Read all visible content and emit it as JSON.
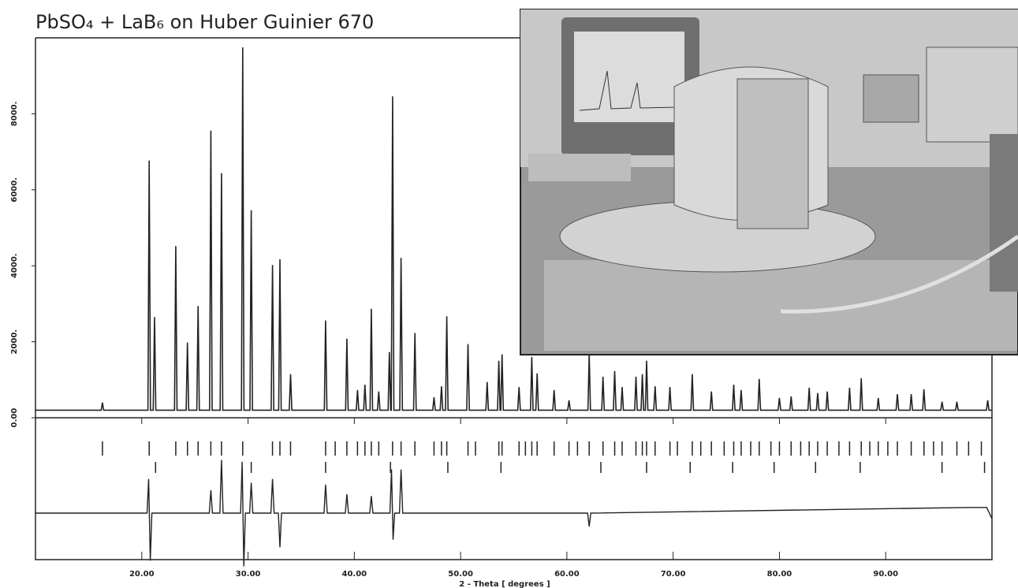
{
  "chart_data": {
    "type": "line",
    "title": "PbSO₄ + LaB₆ on Huber Guinier 670",
    "xlabel": "2 - Theta [ degrees ]",
    "color": "#222222",
    "xlim": [
      10,
      100
    ],
    "ylim": [
      0,
      10000
    ],
    "xticks": [
      {
        "value": 20,
        "label": "20.00"
      },
      {
        "value": 30,
        "label": "30.00"
      },
      {
        "value": 40,
        "label": "40.00"
      },
      {
        "value": 50,
        "label": "50.00"
      },
      {
        "value": 60,
        "label": "60.00"
      },
      {
        "value": 70,
        "label": "70.00"
      },
      {
        "value": 80,
        "label": "80.00"
      },
      {
        "value": 90,
        "label": "90.00"
      }
    ],
    "yticks": [
      {
        "value": 0,
        "label": "0.00"
      },
      {
        "value": 2000,
        "label": "2000."
      },
      {
        "value": 4000,
        "label": "4000."
      },
      {
        "value": 6000,
        "label": "6000."
      },
      {
        "value": 8000,
        "label": "8000."
      }
    ],
    "x": [
      10,
      16.18,
      16.3,
      16.42,
      20.58,
      20.7,
      20.82,
      21.08,
      21.2,
      21.32,
      23.08,
      23.2,
      23.32,
      24.18,
      24.3,
      24.42,
      25.18,
      25.3,
      25.42,
      26.38,
      26.5,
      26.62,
      27.38,
      27.5,
      27.62,
      29.38,
      29.5,
      29.62,
      30.18,
      30.3,
      30.42,
      32.18,
      32.3,
      32.42,
      32.88,
      33.0,
      33.12,
      33.88,
      34.0,
      34.12,
      37.18,
      37.3,
      37.42,
      39.18,
      39.3,
      39.42,
      40.18,
      40.3,
      40.42,
      40.88,
      41.0,
      41.12,
      41.48,
      41.6,
      41.72,
      42.18,
      42.3,
      42.42,
      43.18,
      43.3,
      43.42,
      43.48,
      43.6,
      43.72,
      44.28,
      44.4,
      44.52,
      45.58,
      45.7,
      45.82,
      47.38,
      47.5,
      47.62,
      48.08,
      48.2,
      48.32,
      48.58,
      48.7,
      48.82,
      50.58,
      50.7,
      50.82,
      52.38,
      52.5,
      52.62,
      53.48,
      53.6,
      53.72,
      53.78,
      53.9,
      54.02,
      55.38,
      55.5,
      55.62,
      56.58,
      56.7,
      56.82,
      57.08,
      57.2,
      57.32,
      58.68,
      58.8,
      58.92,
      60.08,
      60.2,
      60.32,
      61.98,
      62.1,
      62.22,
      63.28,
      63.4,
      63.52,
      64.38,
      64.5,
      64.62,
      65.08,
      65.2,
      65.32,
      66.38,
      66.5,
      66.62,
      66.98,
      67.1,
      67.22,
      67.38,
      67.5,
      67.62,
      68.18,
      68.3,
      68.42,
      69.58,
      69.7,
      69.82,
      71.68,
      71.8,
      71.92,
      73.48,
      73.6,
      73.72,
      75.58,
      75.7,
      75.82,
      76.28,
      76.4,
      76.52,
      77.98,
      78.1,
      78.22,
      79.88,
      80.0,
      80.12,
      80.98,
      81.1,
      81.22,
      82.68,
      82.8,
      82.92,
      83.48,
      83.6,
      83.72,
      84.38,
      84.5,
      84.62,
      86.48,
      86.6,
      86.72,
      87.58,
      87.7,
      87.82,
      89.18,
      89.3,
      89.42,
      90.98,
      91.1,
      91.22,
      92.28,
      92.4,
      92.52,
      93.48,
      93.6,
      93.72,
      95.18,
      95.3,
      95.42,
      96.58,
      96.7,
      96.82,
      99.48,
      99.6,
      99.72,
      100
    ],
    "values": [
      200,
      200,
      400,
      200,
      200,
      6770,
      200,
      200,
      2650,
      200,
      200,
      4520,
      200,
      200,
      1980,
      200,
      200,
      2940,
      200,
      200,
      7560,
      200,
      200,
      6440,
      200,
      200,
      9750,
      200,
      200,
      5460,
      200,
      200,
      4020,
      200,
      200,
      4170,
      200,
      200,
      1150,
      200,
      200,
      2560,
      200,
      200,
      2080,
      200,
      200,
      730,
      200,
      200,
      870,
      200,
      200,
      2870,
      200,
      200,
      690,
      200,
      200,
      1730,
      200,
      200,
      8460,
      200,
      200,
      4210,
      200,
      200,
      2230,
      200,
      200,
      540,
      200,
      200,
      830,
      200,
      200,
      2670,
      200,
      200,
      1940,
      200,
      200,
      940,
      200,
      200,
      1500,
      200,
      200,
      1670,
      200,
      200,
      810,
      200,
      200,
      1600,
      200,
      200,
      1170,
      200,
      200,
      730,
      200,
      200,
      460,
      200,
      200,
      1670,
      200,
      200,
      1080,
      200,
      200,
      1230,
      200,
      200,
      810,
      200,
      200,
      1080,
      200,
      200,
      1150,
      200,
      200,
      1500,
      200,
      200,
      830,
      200,
      200,
      810,
      200,
      200,
      1150,
      200,
      200,
      690,
      200,
      200,
      870,
      200,
      200,
      730,
      200,
      200,
      1020,
      200,
      200,
      520,
      200,
      200,
      560,
      200,
      200,
      790,
      200,
      200,
      650,
      200,
      200,
      690,
      200,
      200,
      790,
      200,
      200,
      1040,
      200,
      200,
      520,
      200,
      200,
      620,
      200,
      200,
      620,
      200,
      200,
      750,
      200,
      200,
      420,
      200,
      200,
      420,
      200,
      200,
      460,
      200,
      200
    ],
    "reflections": [
      [
        16.3,
        20.7,
        23.2,
        24.3,
        25.3,
        26.5,
        27.5,
        29.5,
        32.3,
        33.0,
        34.0,
        37.3,
        38.2,
        39.3,
        40.3,
        41.0,
        41.6,
        42.3,
        43.6,
        44.4,
        45.7,
        47.5,
        48.2,
        48.7,
        50.7,
        51.4,
        53.6,
        53.9,
        55.5,
        56.1,
        56.7,
        57.2,
        58.8,
        60.2,
        61.0,
        62.1,
        63.4,
        64.5,
        65.2,
        66.5,
        67.1,
        67.5,
        68.3,
        69.7,
        70.4,
        71.8,
        72.6,
        73.6,
        74.8,
        75.7,
        76.4,
        77.3,
        78.1,
        79.2,
        80.0,
        81.1,
        82.0,
        82.8,
        83.6,
        84.5,
        85.6,
        86.6,
        87.7,
        88.5,
        89.3,
        90.2,
        91.1,
        92.4,
        93.6,
        94.5,
        95.3,
        96.7,
        97.8,
        99.0
      ],
      [
        21.3,
        30.3,
        37.3,
        43.4,
        48.8,
        53.8,
        63.2,
        67.5,
        71.6,
        75.6,
        79.5,
        83.4,
        87.6,
        95.3,
        99.3
      ]
    ],
    "difference": {
      "x": [
        10,
        20.5,
        20.65,
        20.8,
        20.95,
        26.35,
        26.5,
        26.65,
        27.35,
        27.5,
        27.65,
        29.3,
        29.45,
        29.6,
        29.75,
        30.15,
        30.3,
        30.45,
        32.15,
        32.3,
        32.45,
        32.85,
        33.0,
        33.15,
        37.15,
        37.3,
        37.45,
        39.15,
        39.3,
        39.45,
        41.45,
        41.6,
        41.75,
        43.35,
        43.5,
        43.65,
        43.8,
        44.25,
        44.4,
        44.55,
        61.95,
        62.1,
        62.25,
        98,
        99.5,
        100
      ],
      "values": [
        0,
        0,
        900,
        -1250,
        0,
        0,
        600,
        0,
        0,
        1400,
        0,
        0,
        1350,
        -1400,
        0,
        0,
        800,
        0,
        0,
        900,
        0,
        0,
        -900,
        0,
        0,
        750,
        0,
        0,
        500,
        0,
        0,
        450,
        0,
        0,
        1150,
        -700,
        0,
        0,
        1150,
        0,
        0,
        -350,
        0,
        150,
        150,
        -150
      ]
    }
  }
}
